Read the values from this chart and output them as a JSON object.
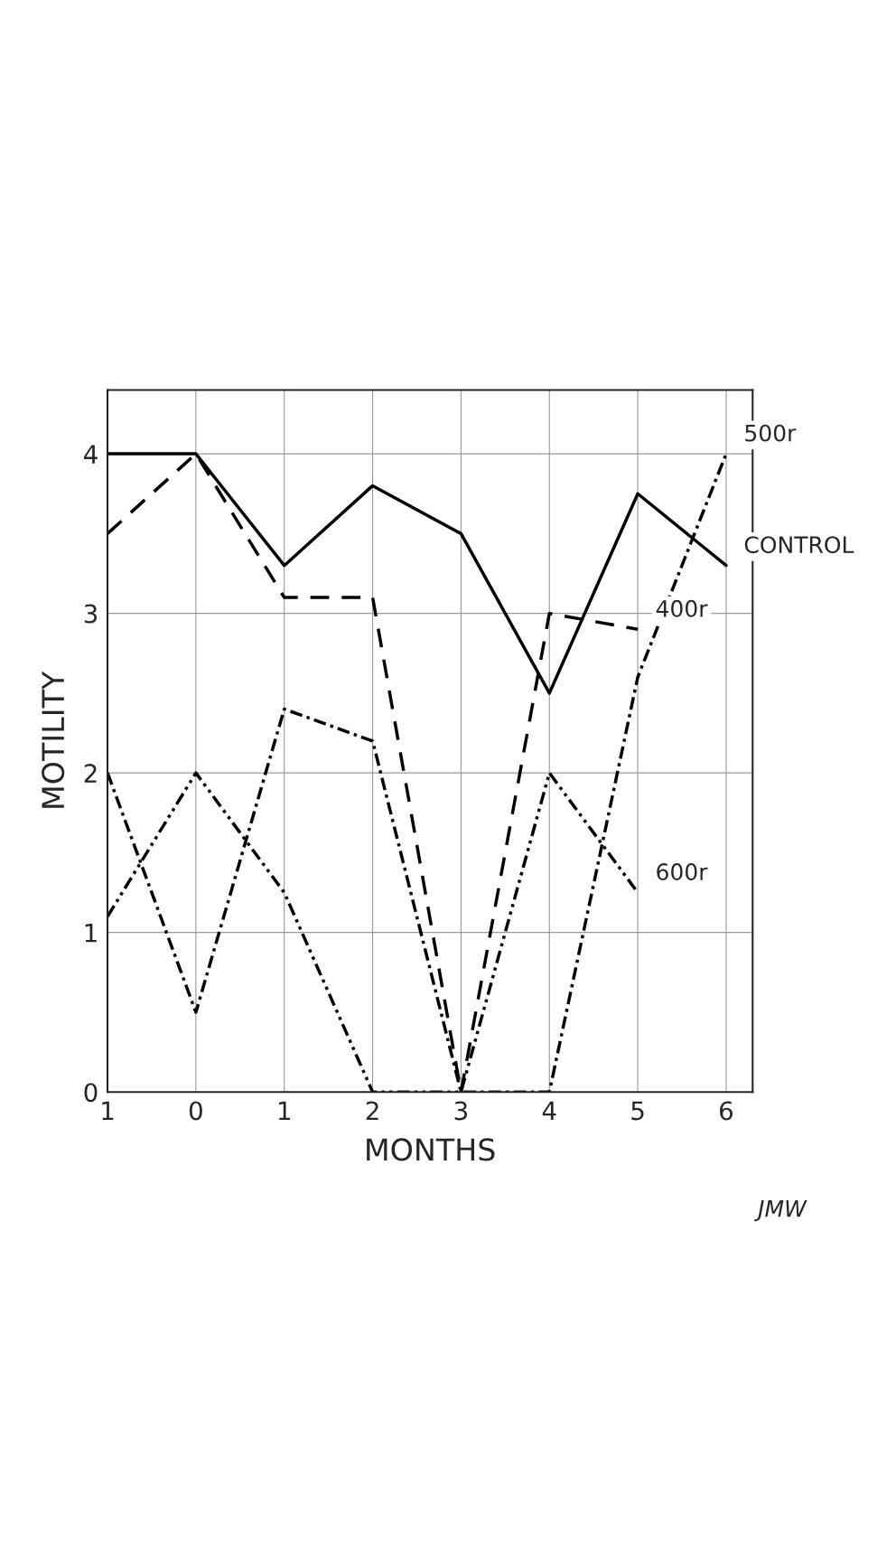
{
  "chart_data": {
    "type": "line",
    "xlabel": "MONTHS",
    "ylabel": "MOTILITY",
    "x": [
      -1,
      0,
      1,
      2,
      3,
      4,
      5,
      6
    ],
    "series": [
      {
        "name": "CONTROL",
        "color": "#000000",
        "line_style": "solid",
        "values": [
          4.0,
          4.0,
          3.3,
          3.8,
          3.5,
          2.5,
          3.75,
          3.3
        ]
      },
      {
        "name": "400r",
        "color": "#000000",
        "line_style": "dashed",
        "values": [
          3.5,
          4.0,
          3.1,
          3.1,
          0,
          3.0,
          2.9,
          null
        ]
      },
      {
        "name": "500r",
        "color": "#000000",
        "line_style": "dashdot",
        "values": [
          2.0,
          0.5,
          2.4,
          2.2,
          0,
          0,
          2.6,
          4.0
        ]
      },
      {
        "name": "600r",
        "color": "#000000",
        "line_style": "dashdotdot",
        "values": [
          1.1,
          2.0,
          1.25,
          0,
          0,
          2.0,
          1.25,
          null
        ]
      }
    ],
    "xlim": [
      -1,
      6.3
    ],
    "ylim": [
      0,
      4.4
    ],
    "xticks": [
      {
        "value": -1,
        "label": "1"
      },
      0,
      1,
      2,
      3,
      4,
      5,
      6
    ],
    "yticks": [
      0,
      1,
      2,
      3,
      4
    ],
    "grid": true,
    "legend": false,
    "marker": "none",
    "annotations": [
      "JMW"
    ]
  }
}
